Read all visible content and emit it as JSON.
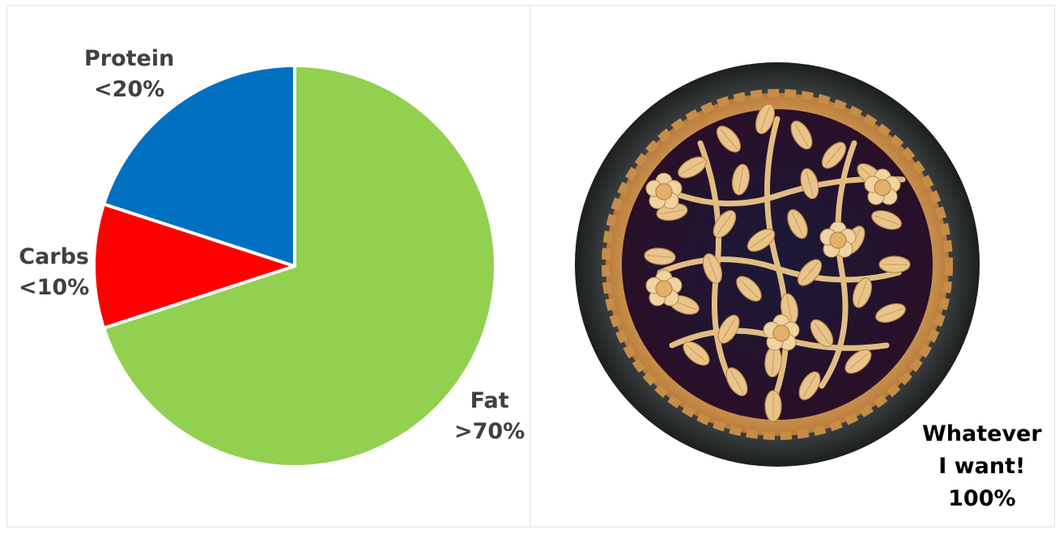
{
  "chart_data": {
    "type": "pie",
    "slices": [
      {
        "label": "Fat",
        "value_label": ">70%",
        "value": 70,
        "color": "#92d050"
      },
      {
        "label": "Carbs",
        "value_label": "<10%",
        "value": 10,
        "color": "#ff0000"
      },
      {
        "label": "Protein",
        "value_label": "<20%",
        "value": 20,
        "color": "#0070c0"
      }
    ]
  },
  "image_panel": {
    "subject": "lattice-top berry pie",
    "caption_lines": [
      "Whatever",
      "I want!",
      "100%"
    ]
  }
}
